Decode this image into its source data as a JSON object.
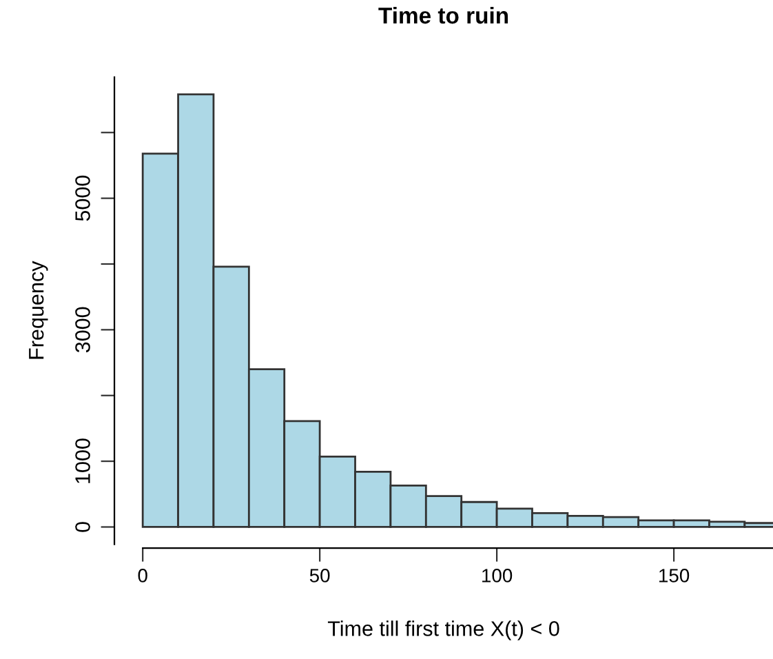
{
  "chart_data": {
    "type": "histogram",
    "title": "Time to ruin",
    "xlabel": "Time till first time X(t) < 0",
    "ylabel": "Frequency",
    "bins": [
      0,
      10,
      20,
      30,
      40,
      50,
      60,
      70,
      80,
      90,
      100,
      110,
      120,
      130,
      140,
      150,
      160,
      170,
      180
    ],
    "values": [
      5680,
      6580,
      3960,
      2400,
      1610,
      1070,
      840,
      630,
      470,
      380,
      280,
      210,
      170,
      150,
      100,
      100,
      80,
      60
    ],
    "color": "#add8e6",
    "xlim": [
      -8,
      178
    ],
    "xticks": [
      0,
      50,
      100,
      150
    ],
    "ylim": [
      -264,
      6843
    ],
    "yticks": [
      0,
      {
        "value": 1000,
        "label": "1000"
      },
      {
        "value": 2000,
        "label": null
      },
      {
        "value": 3000,
        "label": "3000"
      },
      {
        "value": 4000,
        "label": null
      },
      {
        "value": 5000,
        "label": "5000"
      },
      {
        "value": 6000,
        "label": null
      }
    ],
    "grid": false
  }
}
